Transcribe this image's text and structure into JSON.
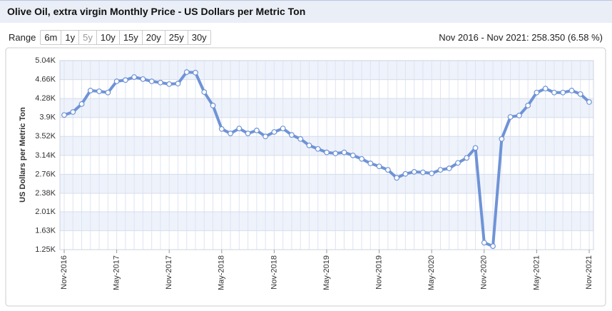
{
  "header": {
    "title": "Olive Oil, extra virgin Monthly Price - US Dollars per Metric Ton"
  },
  "range": {
    "label": "Range",
    "buttons": [
      "6m",
      "1y",
      "5y",
      "10y",
      "15y",
      "20y",
      "25y",
      "30y"
    ],
    "selected_button": 2
  },
  "summary": "Nov 2016 - Nov 2021: 258.350 (6.58 %)",
  "chart_data": {
    "type": "line",
    "y_label": "US Dollars per Metric Ton",
    "categories": [
      "Nov-2016",
      null,
      null,
      null,
      null,
      null,
      "May-2017",
      null,
      null,
      null,
      null,
      null,
      "Nov-2017",
      null,
      null,
      null,
      null,
      null,
      "May-2018",
      null,
      null,
      null,
      null,
      null,
      "Nov-2018",
      null,
      null,
      null,
      null,
      null,
      "May-2019",
      null,
      null,
      null,
      null,
      null,
      "Nov-2019",
      null,
      null,
      null,
      null,
      null,
      "May-2020",
      null,
      null,
      null,
      null,
      null,
      "Nov-2020",
      null,
      null,
      null,
      null,
      null,
      "May-2021",
      null,
      null,
      null,
      null,
      null,
      "Nov-2021"
    ],
    "values": [
      3950,
      4010,
      4170,
      4440,
      4425,
      4400,
      4625,
      4650,
      4710,
      4670,
      4625,
      4600,
      4570,
      4580,
      4810,
      4800,
      4410,
      4140,
      3670,
      3580,
      3680,
      3580,
      3640,
      3520,
      3610,
      3680,
      3550,
      3470,
      3340,
      3270,
      3200,
      3180,
      3200,
      3140,
      3070,
      2980,
      2920,
      2850,
      2690,
      2770,
      2810,
      2800,
      2780,
      2850,
      2880,
      2990,
      3090,
      3290,
      1390,
      1320,
      3470,
      3910,
      3940,
      4140,
      4400,
      4480,
      4400,
      4400,
      4440,
      4370,
      4210
    ],
    "color": "#6f93d6",
    "ylim": [
      1250,
      5040
    ],
    "yticks": [
      {
        "value": 1250,
        "label": "1.25K"
      },
      {
        "value": 1630,
        "label": "1.63K"
      },
      {
        "value": 2010,
        "label": "2.01K"
      },
      {
        "value": 2380,
        "label": "2.38K"
      },
      {
        "value": 2760,
        "label": "2.76K"
      },
      {
        "value": 3140,
        "label": "3.14K"
      },
      {
        "value": 3520,
        "label": "3.52K"
      },
      {
        "value": 3900,
        "label": "3.9K"
      },
      {
        "value": 4280,
        "label": "4.28K"
      },
      {
        "value": 4660,
        "label": "4.66K"
      },
      {
        "value": 5040,
        "label": "5.04K"
      }
    ],
    "grid": true
  }
}
